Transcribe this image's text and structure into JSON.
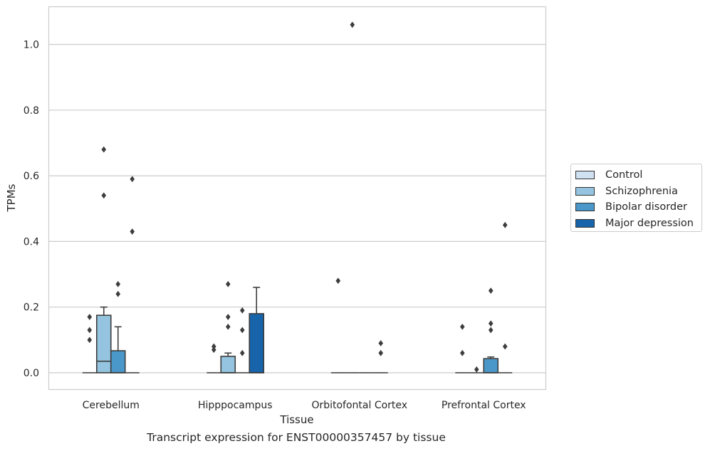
{
  "chart_data": {
    "type": "box",
    "title": "",
    "caption": "Transcript expression for ENST00000357457 by tissue",
    "xlabel": "Tissue",
    "ylabel": "TPMs",
    "ylim": [
      -0.05,
      1.12
    ],
    "yticks": [
      0.0,
      0.2,
      0.4,
      0.6,
      0.8,
      1.0
    ],
    "ytick_labels": [
      "0.0",
      "0.2",
      "0.4",
      "0.6",
      "0.8",
      "1.0"
    ],
    "grid": "horizontal",
    "legend_position": "right",
    "categories": [
      "Cerebellum",
      "Hipppocampus",
      "Orbitofontal Cortex",
      "Prefrontal Cortex"
    ],
    "series": [
      {
        "name": "Control",
        "color": "#d0e1f2",
        "boxes": [
          {
            "q1": 0,
            "median": 0,
            "q3": 0,
            "whisker_low": 0,
            "whisker_high": 0,
            "outliers": [
              0.1,
              0.13,
              0.17
            ]
          },
          {
            "q1": 0,
            "median": 0,
            "q3": 0,
            "whisker_low": 0,
            "whisker_high": 0,
            "outliers": [
              0.07,
              0.08
            ]
          },
          {
            "q1": 0,
            "median": 0,
            "q3": 0,
            "whisker_low": 0,
            "whisker_high": 0,
            "outliers": [
              0.28
            ]
          },
          {
            "q1": 0,
            "median": 0,
            "q3": 0,
            "whisker_low": 0,
            "whisker_high": 0,
            "outliers": [
              0.06,
              0.14
            ]
          }
        ]
      },
      {
        "name": "Schizophrenia",
        "color": "#94c4df",
        "boxes": [
          {
            "q1": 0,
            "median": 0.035,
            "q3": 0.175,
            "whisker_low": 0,
            "whisker_high": 0.2,
            "outliers": [
              0.54,
              0.68
            ]
          },
          {
            "q1": 0,
            "median": 0,
            "q3": 0.05,
            "whisker_low": 0,
            "whisker_high": 0.06,
            "outliers": [
              0.14,
              0.17,
              0.27
            ]
          },
          {
            "q1": 0,
            "median": 0,
            "q3": 0,
            "whisker_low": 0,
            "whisker_high": 0,
            "outliers": [
              1.06
            ]
          },
          {
            "q1": 0,
            "median": 0,
            "q3": 0,
            "whisker_low": 0,
            "whisker_high": 0,
            "outliers": [
              0.01
            ]
          }
        ]
      },
      {
        "name": "Bipolar disorder",
        "color": "#4a98c9",
        "boxes": [
          {
            "q1": 0,
            "median": 0,
            "q3": 0.067,
            "whisker_low": 0,
            "whisker_high": 0.14,
            "outliers": [
              0.24,
              0.27
            ]
          },
          {
            "q1": 0,
            "median": 0,
            "q3": 0,
            "whisker_low": 0,
            "whisker_high": 0,
            "outliers": [
              0.06,
              0.13,
              0.19
            ]
          },
          {
            "q1": 0,
            "median": 0,
            "q3": 0,
            "whisker_low": 0,
            "whisker_high": 0,
            "outliers": []
          },
          {
            "q1": 0,
            "median": 0,
            "q3": 0.043,
            "whisker_low": 0,
            "whisker_high": 0.048,
            "outliers": [
              0.13,
              0.15,
              0.25
            ]
          }
        ]
      },
      {
        "name": "Major depression",
        "color": "#1764ab",
        "boxes": [
          {
            "q1": 0,
            "median": 0,
            "q3": 0,
            "whisker_low": 0,
            "whisker_high": 0,
            "outliers": [
              0.43,
              0.59
            ]
          },
          {
            "q1": 0,
            "median": 0,
            "q3": 0.18,
            "whisker_low": 0,
            "whisker_high": 0.26,
            "outliers": []
          },
          {
            "q1": 0,
            "median": 0,
            "q3": 0,
            "whisker_low": 0,
            "whisker_high": 0,
            "outliers": [
              0.06,
              0.09
            ]
          },
          {
            "q1": 0,
            "median": 0,
            "q3": 0,
            "whisker_low": 0,
            "whisker_high": 0,
            "outliers": [
              0.08,
              0.45
            ]
          }
        ]
      }
    ]
  }
}
